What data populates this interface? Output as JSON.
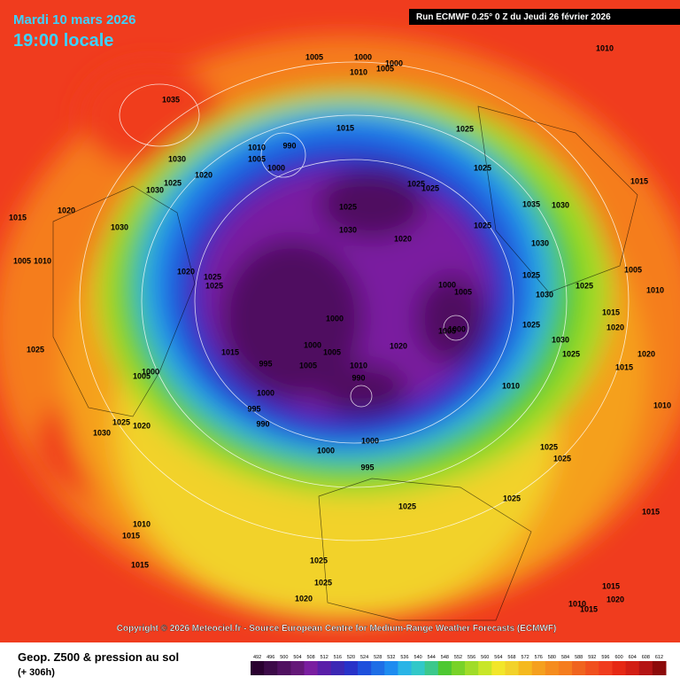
{
  "header": {
    "date": "Mardi 10 mars 2026",
    "time": "19:00 locale",
    "run": "Run ECMWF 0.25° 0 Z du Jeudi 26 février 2026"
  },
  "copyright": "Copyright © 2026 Meteociel.fr - Source European Centre for Medium-Range Weather Forecasts (ECMWF)",
  "footer": {
    "title": "Geop. Z500 & pression au sol",
    "lead": "(+ 306h)"
  },
  "colorbar": {
    "ticks": [
      492,
      496,
      500,
      504,
      508,
      512,
      516,
      520,
      524,
      528,
      532,
      536,
      540,
      544,
      548,
      552,
      556,
      560,
      564,
      568,
      572,
      576,
      580,
      584,
      588,
      592,
      596,
      600,
      604,
      608,
      612
    ],
    "colors": [
      "#2a0030",
      "#3c0a48",
      "#501060",
      "#641878",
      "#7a1ea0",
      "#5a1ea8",
      "#3c28b4",
      "#2832c8",
      "#1e50dc",
      "#1e6ee6",
      "#1e8cf0",
      "#2ab4e6",
      "#32c8c8",
      "#3cc88c",
      "#4dc832",
      "#78d228",
      "#a0dc28",
      "#c8e628",
      "#f2e62a",
      "#f2d22a",
      "#f5b91e",
      "#f5a01e",
      "#f58c1e",
      "#f57d1e",
      "#f0641e",
      "#f0501e",
      "#f03c1e",
      "#e62814",
      "#d21e14",
      "#b41414",
      "#8c0a0a"
    ]
  },
  "isobar_labels": [
    1005,
    1000,
    1000,
    1005,
    1010,
    1010,
    1035,
    1015,
    1025,
    1010,
    990,
    1005,
    1000,
    1030,
    1020,
    1025,
    1030,
    1015,
    1020,
    1030,
    1005,
    1010,
    1020,
    1025,
    1025,
    1025,
    1030,
    1020,
    1025,
    1025,
    1025,
    1025,
    1035,
    1030,
    1015,
    1030,
    1000,
    1005,
    1005,
    1000,
    1020,
    1000,
    1000,
    1005,
    1015,
    995,
    1005,
    1010,
    990,
    1000,
    995,
    990,
    1010,
    1010,
    1025,
    1000,
    1000,
    995,
    1025,
    1025,
    1015,
    1010,
    1015,
    1015,
    1025,
    1025,
    1020,
    1015,
    1020,
    1010,
    1015,
    1025,
    1030,
    1025,
    1020,
    1000,
    1005,
    1025,
    1025,
    1005,
    1010,
    1015,
    1020,
    1030,
    1025,
    1030,
    1025,
    1015,
    1020,
    1025
  ]
}
